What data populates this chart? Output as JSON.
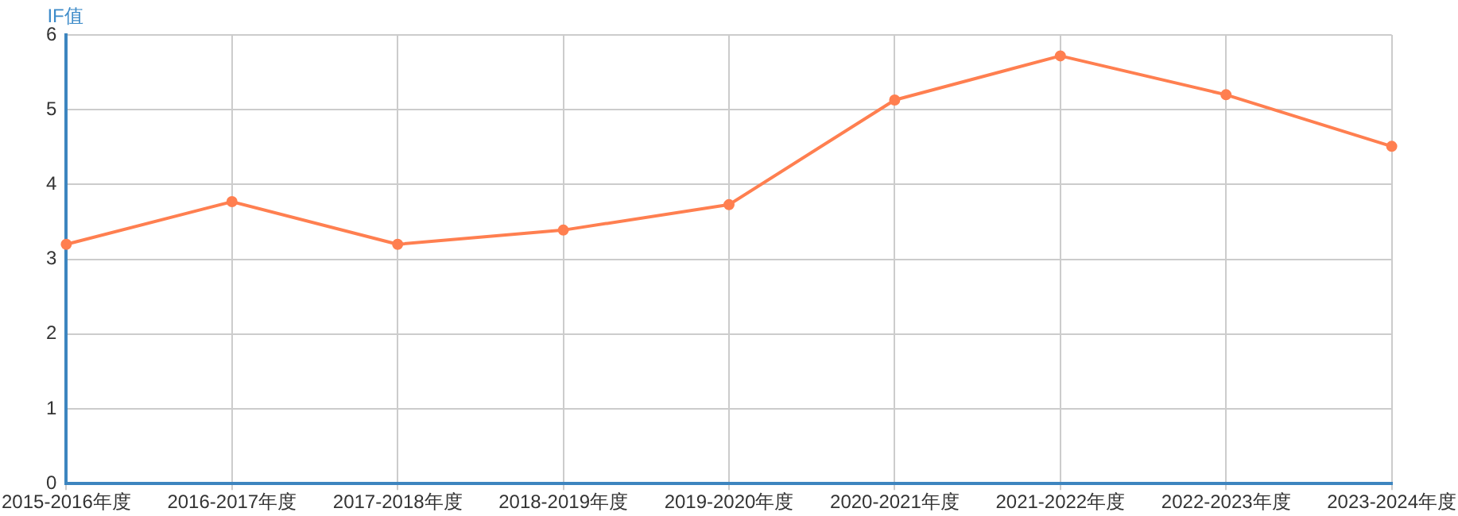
{
  "chart_data": {
    "type": "line",
    "ylabel": "IF值",
    "categories": [
      "2015-2016年度",
      "2016-2017年度",
      "2017-2018年度",
      "2018-2019年度",
      "2019-2020年度",
      "2020-2021年度",
      "2021-2022年度",
      "2022-2023年度",
      "2023-2024年度"
    ],
    "series": [
      {
        "color": "#ff7f50",
        "values": [
          3.2,
          3.77,
          3.2,
          3.39,
          3.73,
          5.13,
          5.72,
          5.2,
          4.51
        ]
      }
    ],
    "ylim": [
      0,
      6
    ],
    "yticks": [
      0,
      1,
      2,
      3,
      4,
      5,
      6
    ],
    "grid": true,
    "legend": false,
    "marker": "circle",
    "line_style": "solid"
  }
}
